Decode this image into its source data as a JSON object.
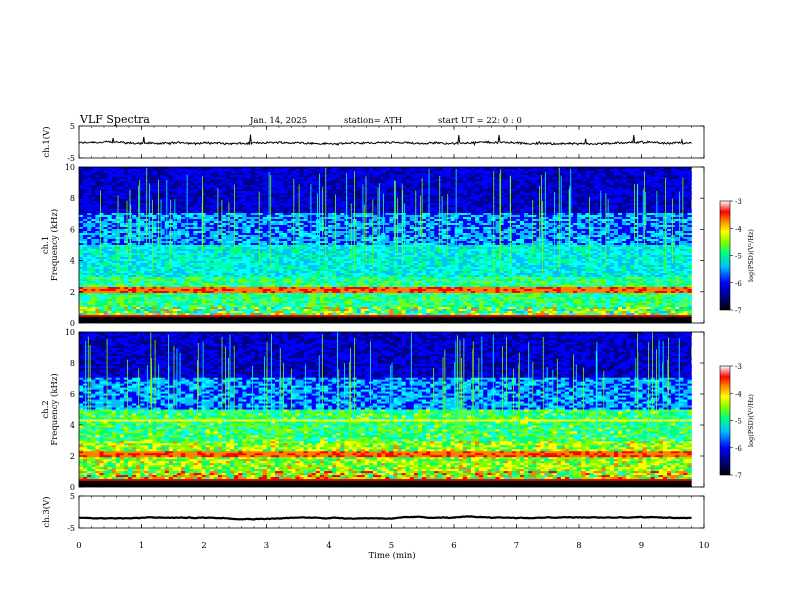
{
  "header": {
    "title": "VLF  Spectra",
    "date": "Jan. 14, 2025",
    "station": "station= ATH",
    "start": "start  UT  =    22: 0  : 0"
  },
  "chart_data": [
    {
      "type": "line",
      "panel": "ch1-waveform",
      "ylabel": "ch.1(V)",
      "ylim": [
        -5,
        5
      ],
      "yticks": [
        "5",
        "-5"
      ],
      "xlim": [
        0,
        10
      ],
      "series": [
        {
          "name": "",
          "x_range": [
            0,
            9.8
          ],
          "mean": -0.3,
          "noise": 0.6
        }
      ]
    },
    {
      "type": "heatmap",
      "panel": "ch1-spectrogram",
      "ylabel": "ch.1\nFrequency (kHz)",
      "ylim": [
        0,
        10
      ],
      "yticks": [
        "10",
        "8",
        "6",
        "4",
        "2",
        "0"
      ],
      "xlim": [
        0,
        9.8
      ],
      "colorbar": {
        "label": "log(PSD)(V²/Hz)",
        "range": [
          -7,
          -3
        ],
        "ticks": [
          "-3",
          "-4",
          "-5",
          "-6",
          "-7"
        ]
      }
    },
    {
      "type": "heatmap",
      "panel": "ch2-spectrogram",
      "ylabel": "ch.2\nFrequency (kHz)",
      "ylim": [
        0,
        10
      ],
      "yticks": [
        "10",
        "8",
        "6",
        "4",
        "2",
        "0"
      ],
      "xlim": [
        0,
        9.8
      ],
      "colorbar": {
        "label": "log(PSD)(V²/Hz)",
        "range": [
          -7,
          -3
        ],
        "ticks": [
          "-3",
          "-4",
          "-5",
          "-6",
          "-7"
        ]
      }
    },
    {
      "type": "line",
      "panel": "ch3-waveform",
      "ylabel": "ch.3(V)",
      "ylim": [
        -5,
        5
      ],
      "yticks": [
        "5",
        "-5"
      ],
      "xlim": [
        0,
        10
      ],
      "series": [
        {
          "name": "",
          "x_range": [
            0,
            9.8
          ],
          "mean": -1.8,
          "noise": 0.1
        }
      ]
    }
  ],
  "xaxis": {
    "label": "Time  (min)",
    "ticks": [
      "0",
      "1",
      "2",
      "3",
      "4",
      "5",
      "6",
      "7",
      "8",
      "9",
      "10"
    ]
  },
  "colors": {
    "palette": [
      "#000000",
      "#00008b",
      "#0000ff",
      "#00bfff",
      "#00ffff",
      "#00ff7f",
      "#7fff00",
      "#ffff00",
      "#ff7f00",
      "#ff0000",
      "#ffffff"
    ]
  }
}
